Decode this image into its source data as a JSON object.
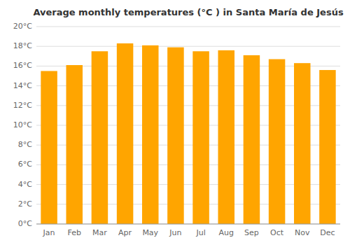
{
  "chart_data": {
    "type": "bar",
    "title": "Average monthly temperatures (°C ) in Santa María de Jesús",
    "categories": [
      "Jan",
      "Feb",
      "Mar",
      "Apr",
      "May",
      "Jun",
      "Jul",
      "Aug",
      "Sep",
      "Oct",
      "Nov",
      "Dec"
    ],
    "values": [
      15.5,
      16.1,
      17.5,
      18.3,
      18.1,
      17.9,
      17.5,
      17.6,
      17.1,
      16.7,
      16.3,
      15.6
    ],
    "color": "#FFA500",
    "ylim": [
      0,
      20
    ],
    "yticks": [
      {
        "value": 0,
        "label": "0°C"
      },
      {
        "value": 2,
        "label": "2°C"
      },
      {
        "value": 4,
        "label": "4°C"
      },
      {
        "value": 6,
        "label": "6°C"
      },
      {
        "value": 8,
        "label": "8°C"
      },
      {
        "value": 10,
        "label": "10°C"
      },
      {
        "value": 12,
        "label": "12°C"
      },
      {
        "value": 14,
        "label": "14°C"
      },
      {
        "value": 16,
        "label": "16°C"
      },
      {
        "value": 18,
        "label": "18°C"
      },
      {
        "value": 20,
        "label": "20°C"
      }
    ],
    "grid": true
  }
}
